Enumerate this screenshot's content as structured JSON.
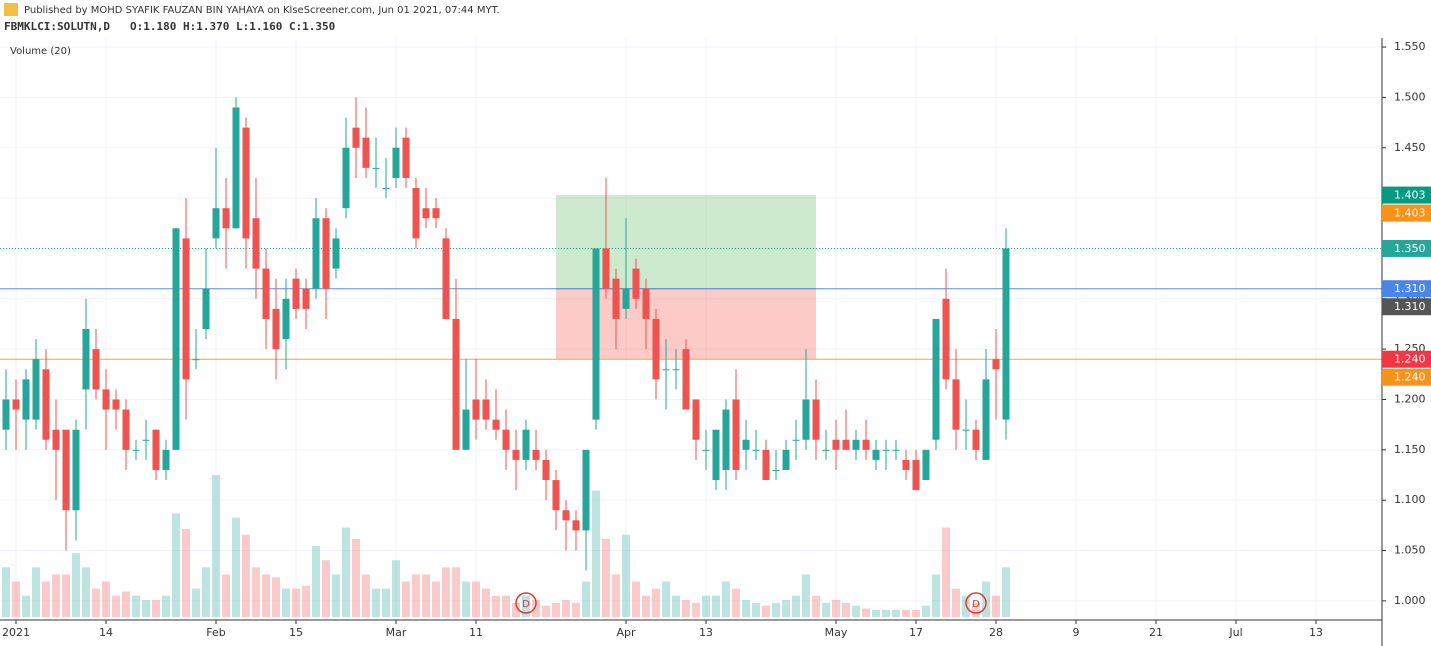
{
  "header": {
    "published": "Published by MOHD SYAFIK FAUZAN BIN YAHAYA on KlseScreener.com, Jun 01 2021, 07:44 MYT.",
    "symbol": "FBMKLCI:SOLUTN,D",
    "ohlc": "O:1.180 H:1.370 L:1.160 C:1.350",
    "volume_legend": "Volume (20)"
  },
  "chart_data": {
    "type": "candlestick",
    "open": [
      1.17,
      1.2,
      1.18,
      1.18,
      1.23,
      1.17,
      1.17,
      1.09,
      1.21,
      1.25,
      1.21,
      1.2,
      1.19,
      1.15,
      1.16,
      1.17,
      1.13,
      1.15,
      1.36,
      1.24,
      1.27,
      1.36,
      1.39,
      1.37,
      1.47,
      1.38,
      1.33,
      1.29,
      1.26,
      1.32,
      1.31,
      1.31,
      1.38,
      1.33,
      1.39,
      1.47,
      1.46,
      1.43,
      1.41,
      1.42,
      1.46,
      1.41,
      1.39,
      1.39,
      1.36,
      1.28,
      1.15,
      1.2,
      1.2,
      1.18,
      1.17,
      1.15,
      1.14,
      1.15,
      1.14,
      1.12,
      1.09,
      1.08,
      1.07,
      1.18,
      1.35,
      1.32,
      1.29,
      1.33,
      1.31,
      1.28,
      1.23,
      1.23,
      1.25,
      1.2,
      1.15,
      1.12,
      1.13,
      1.2,
      1.15,
      1.15,
      1.15,
      1.13,
      1.13,
      1.16,
      1.16,
      1.2,
      1.15,
      1.16,
      1.16,
      1.15,
      1.16,
      1.14,
      1.15,
      1.15,
      1.14,
      1.14,
      1.12,
      1.16,
      1.3,
      1.22,
      1.17,
      1.17,
      1.14,
      1.24,
      1.18
    ],
    "high": [
      1.23,
      1.22,
      1.23,
      1.26,
      1.25,
      1.2,
      1.17,
      1.18,
      1.3,
      1.27,
      1.23,
      1.21,
      1.2,
      1.16,
      1.18,
      1.17,
      1.16,
      1.37,
      1.4,
      1.27,
      1.35,
      1.45,
      1.42,
      1.5,
      1.48,
      1.42,
      1.35,
      1.32,
      1.32,
      1.33,
      1.32,
      1.4,
      1.39,
      1.37,
      1.48,
      1.5,
      1.49,
      1.46,
      1.44,
      1.47,
      1.47,
      1.42,
      1.41,
      1.4,
      1.37,
      1.32,
      1.24,
      1.24,
      1.22,
      1.21,
      1.19,
      1.17,
      1.18,
      1.17,
      1.15,
      1.13,
      1.1,
      1.09,
      1.15,
      1.35,
      1.42,
      1.33,
      1.38,
      1.34,
      1.32,
      1.29,
      1.26,
      1.25,
      1.26,
      1.2,
      1.17,
      1.17,
      1.2,
      1.23,
      1.18,
      1.17,
      1.16,
      1.15,
      1.16,
      1.18,
      1.25,
      1.22,
      1.17,
      1.18,
      1.19,
      1.17,
      1.18,
      1.16,
      1.16,
      1.16,
      1.15,
      1.15,
      1.15,
      1.28,
      1.33,
      1.25,
      1.2,
      1.18,
      1.25,
      1.27,
      1.37
    ],
    "low": [
      1.15,
      1.15,
      1.15,
      1.17,
      1.15,
      1.1,
      1.05,
      1.06,
      1.17,
      1.2,
      1.15,
      1.17,
      1.13,
      1.14,
      1.14,
      1.12,
      1.12,
      1.15,
      1.18,
      1.23,
      1.26,
      1.35,
      1.33,
      1.37,
      1.33,
      1.3,
      1.25,
      1.22,
      1.23,
      1.28,
      1.27,
      1.3,
      1.28,
      1.32,
      1.38,
      1.42,
      1.42,
      1.41,
      1.4,
      1.41,
      1.41,
      1.35,
      1.37,
      1.37,
      1.28,
      1.15,
      1.15,
      1.16,
      1.17,
      1.16,
      1.13,
      1.11,
      1.13,
      1.13,
      1.1,
      1.07,
      1.05,
      1.05,
      1.03,
      1.17,
      1.3,
      1.25,
      1.28,
      1.29,
      1.25,
      1.2,
      1.19,
      1.21,
      1.19,
      1.14,
      1.13,
      1.11,
      1.11,
      1.12,
      1.13,
      1.14,
      1.12,
      1.12,
      1.13,
      1.14,
      1.15,
      1.14,
      1.14,
      1.13,
      1.15,
      1.14,
      1.14,
      1.13,
      1.13,
      1.14,
      1.12,
      1.11,
      1.12,
      1.15,
      1.21,
      1.15,
      1.15,
      1.14,
      1.14,
      1.18,
      1.16
    ],
    "close": [
      1.2,
      1.19,
      1.22,
      1.24,
      1.16,
      1.15,
      1.09,
      1.17,
      1.27,
      1.21,
      1.19,
      1.19,
      1.15,
      1.15,
      1.16,
      1.13,
      1.15,
      1.37,
      1.22,
      1.24,
      1.31,
      1.39,
      1.37,
      1.49,
      1.36,
      1.33,
      1.28,
      1.25,
      1.3,
      1.29,
      1.29,
      1.38,
      1.31,
      1.36,
      1.45,
      1.45,
      1.43,
      1.43,
      1.41,
      1.45,
      1.42,
      1.36,
      1.38,
      1.38,
      1.28,
      1.15,
      1.19,
      1.18,
      1.18,
      1.17,
      1.15,
      1.14,
      1.17,
      1.14,
      1.12,
      1.09,
      1.08,
      1.07,
      1.15,
      1.35,
      1.31,
      1.28,
      1.31,
      1.3,
      1.28,
      1.22,
      1.23,
      1.23,
      1.19,
      1.16,
      1.15,
      1.17,
      1.19,
      1.13,
      1.16,
      1.15,
      1.12,
      1.13,
      1.15,
      1.16,
      1.2,
      1.16,
      1.15,
      1.15,
      1.15,
      1.16,
      1.15,
      1.15,
      1.15,
      1.15,
      1.13,
      1.11,
      1.15,
      1.28,
      1.22,
      1.17,
      1.17,
      1.15,
      1.22,
      1.23,
      1.35
    ],
    "volume": [
      35,
      25,
      15,
      35,
      25,
      30,
      30,
      45,
      35,
      20,
      25,
      15,
      18,
      15,
      12,
      12,
      15,
      73,
      62,
      20,
      35,
      100,
      30,
      70,
      58,
      35,
      30,
      28,
      20,
      20,
      22,
      50,
      40,
      30,
      63,
      55,
      30,
      20,
      20,
      40,
      25,
      30,
      30,
      25,
      35,
      35,
      25,
      25,
      20,
      15,
      15,
      10,
      15,
      12,
      8,
      10,
      12,
      10,
      25,
      89,
      55,
      30,
      58,
      25,
      15,
      20,
      25,
      15,
      12,
      10,
      15,
      15,
      25,
      20,
      12,
      10,
      8,
      10,
      12,
      15,
      30,
      15,
      10,
      12,
      10,
      8,
      6,
      5,
      5,
      5,
      5,
      5,
      8,
      30,
      63,
      20,
      15,
      10,
      25,
      15,
      35
    ],
    "up_color": "#26a69a",
    "down_color": "#ef5350",
    "xlim": [
      -0.6,
      137.6
    ],
    "xticks": [
      {
        "value": 1,
        "label": "2021"
      },
      {
        "value": 10,
        "label": "14"
      },
      {
        "value": 21,
        "label": "Feb"
      },
      {
        "value": 29,
        "label": "15"
      },
      {
        "value": 39,
        "label": "Mar"
      },
      {
        "value": 47,
        "label": "11"
      },
      {
        "value": 62,
        "label": "Apr"
      },
      {
        "value": 70,
        "label": "13"
      },
      {
        "value": 83,
        "label": "May"
      },
      {
        "value": 91,
        "label": "17"
      },
      {
        "value": 99,
        "label": "28"
      },
      {
        "value": 107,
        "label": "9"
      },
      {
        "value": 115,
        "label": "21"
      },
      {
        "value": 123,
        "label": "Jul"
      },
      {
        "value": 131,
        "label": "13"
      }
    ],
    "ylim": [
      0.981,
      1.559
    ],
    "yticks": [
      {
        "value": 1.0,
        "label": "1.000"
      },
      {
        "value": 1.05,
        "label": "1.050"
      },
      {
        "value": 1.1,
        "label": "1.100"
      },
      {
        "value": 1.15,
        "label": "1.150"
      },
      {
        "value": 1.2,
        "label": "1.200"
      },
      {
        "value": 1.25,
        "label": "1.250"
      },
      {
        "value": 1.3,
        "label": "1.300"
      },
      {
        "value": 1.35,
        "label": "1.350"
      },
      {
        "value": 1.4,
        "label": "1.400"
      },
      {
        "value": 1.45,
        "label": "1.450"
      },
      {
        "value": 1.5,
        "label": "1.500"
      },
      {
        "value": 1.55,
        "label": "1.550"
      }
    ],
    "vlim": [
      0,
      100
    ],
    "grid": true,
    "lines": [
      {
        "value": 1.35,
        "color": "#26a69a",
        "dash": true
      },
      {
        "value": 1.31,
        "color": "#5b8fe0",
        "dash": false
      },
      {
        "value": 1.24,
        "color": "#f0a830",
        "dash": false
      }
    ],
    "price_labels": [
      {
        "value": 1.403,
        "label": "1.403",
        "color": "#089981"
      },
      {
        "value": 1.403,
        "label": "1.403",
        "color": "#f7931a"
      },
      {
        "value": 1.35,
        "label": "1.350",
        "color": "#26a69a"
      },
      {
        "value": 1.31,
        "label": "1.310",
        "color": "#4a86e8"
      },
      {
        "value": 1.31,
        "label": "1.310",
        "color": "#555555"
      },
      {
        "value": 1.24,
        "label": "1.240",
        "color": "#f23645"
      },
      {
        "value": 1.24,
        "label": "1.240",
        "color": "#f7931a"
      }
    ],
    "position": {
      "start": 55,
      "end": 81,
      "entry": 1.31,
      "target": 1.403,
      "stop": 1.24
    },
    "events": [
      {
        "index": 52,
        "label": "D"
      },
      {
        "index": 97,
        "label": "D"
      }
    ]
  }
}
